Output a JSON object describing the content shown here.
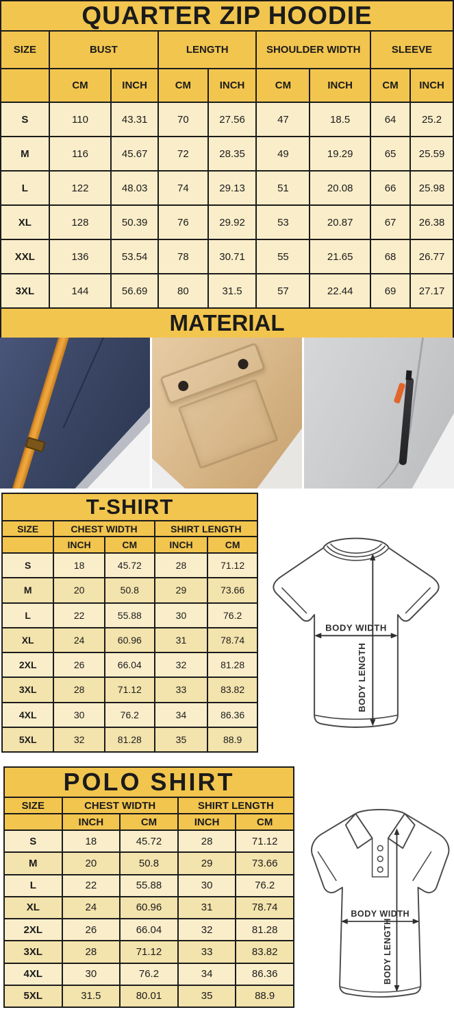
{
  "hoodie": {
    "title": "QUARTER ZIP HOODIE",
    "size_header": "SIZE",
    "groups": [
      "BUST",
      "LENGTH",
      "SHOULDER WIDTH",
      "SLEEVE"
    ],
    "units": [
      "CM",
      "INCH",
      "CM",
      "INCH",
      "CM",
      "INCH",
      "CM",
      "INCH"
    ],
    "rows": [
      [
        "S",
        "110",
        "43.31",
        "70",
        "27.56",
        "47",
        "18.5",
        "64",
        "25.2"
      ],
      [
        "M",
        "116",
        "45.67",
        "72",
        "28.35",
        "49",
        "19.29",
        "65",
        "25.59"
      ],
      [
        "L",
        "122",
        "48.03",
        "74",
        "29.13",
        "51",
        "20.08",
        "66",
        "25.98"
      ],
      [
        "XL",
        "128",
        "50.39",
        "76",
        "29.92",
        "53",
        "20.87",
        "67",
        "26.38"
      ],
      [
        "XXL",
        "136",
        "53.54",
        "78",
        "30.71",
        "55",
        "21.65",
        "68",
        "26.77"
      ],
      [
        "3XL",
        "144",
        "56.69",
        "80",
        "31.5",
        "57",
        "22.44",
        "69",
        "27.17"
      ]
    ]
  },
  "material": {
    "title": "MATERIAL",
    "photos": [
      "navy-fleece-orange-drawcord-photo",
      "khaki-flap-pocket-snaps-photo",
      "gray-fleece-zipper-orange-pull-photo"
    ]
  },
  "tshirt": {
    "title": "T-SHIRT",
    "size_header": "SIZE",
    "groups": [
      "CHEST WIDTH",
      "SHIRT LENGTH"
    ],
    "units": [
      "INCH",
      "CM",
      "INCH",
      "CM"
    ],
    "rows": [
      [
        "S",
        "18",
        "45.72",
        "28",
        "71.12"
      ],
      [
        "M",
        "20",
        "50.8",
        "29",
        "73.66"
      ],
      [
        "L",
        "22",
        "55.88",
        "30",
        "76.2"
      ],
      [
        "XL",
        "24",
        "60.96",
        "31",
        "78.74"
      ],
      [
        "2XL",
        "26",
        "66.04",
        "32",
        "81.28"
      ],
      [
        "3XL",
        "28",
        "71.12",
        "33",
        "83.82"
      ],
      [
        "4XL",
        "30",
        "76.2",
        "34",
        "86.36"
      ],
      [
        "5XL",
        "32",
        "81.28",
        "35",
        "88.9"
      ]
    ]
  },
  "polo": {
    "title": "POLO SHIRT",
    "size_header": "SIZE",
    "groups": [
      "CHEST WIDTH",
      "SHIRT LENGTH"
    ],
    "units": [
      "INCH",
      "CM",
      "INCH",
      "CM"
    ],
    "rows": [
      [
        "S",
        "18",
        "45.72",
        "28",
        "71.12"
      ],
      [
        "M",
        "20",
        "50.8",
        "29",
        "73.66"
      ],
      [
        "L",
        "22",
        "55.88",
        "30",
        "76.2"
      ],
      [
        "XL",
        "24",
        "60.96",
        "31",
        "78.74"
      ],
      [
        "2XL",
        "26",
        "66.04",
        "32",
        "81.28"
      ],
      [
        "3XL",
        "28",
        "71.12",
        "33",
        "83.82"
      ],
      [
        "4XL",
        "30",
        "76.2",
        "34",
        "86.36"
      ],
      [
        "5XL",
        "31.5",
        "80.01",
        "35",
        "88.9"
      ]
    ]
  },
  "diagram": {
    "body_width": "BODY WIDTH",
    "body_length": "BODY LENGTH"
  },
  "colors": {
    "header_yellow": "#F2C54E",
    "row_cream": "#FAEECA",
    "row_cream_alt": "#F3E3AC",
    "border": "#1B1B1B",
    "navy": "#3C4766",
    "strap_orange": "#E89A33",
    "khaki": "#DDBE92",
    "gray": "#CBCCCE",
    "zipper_orange": "#E2652B"
  }
}
